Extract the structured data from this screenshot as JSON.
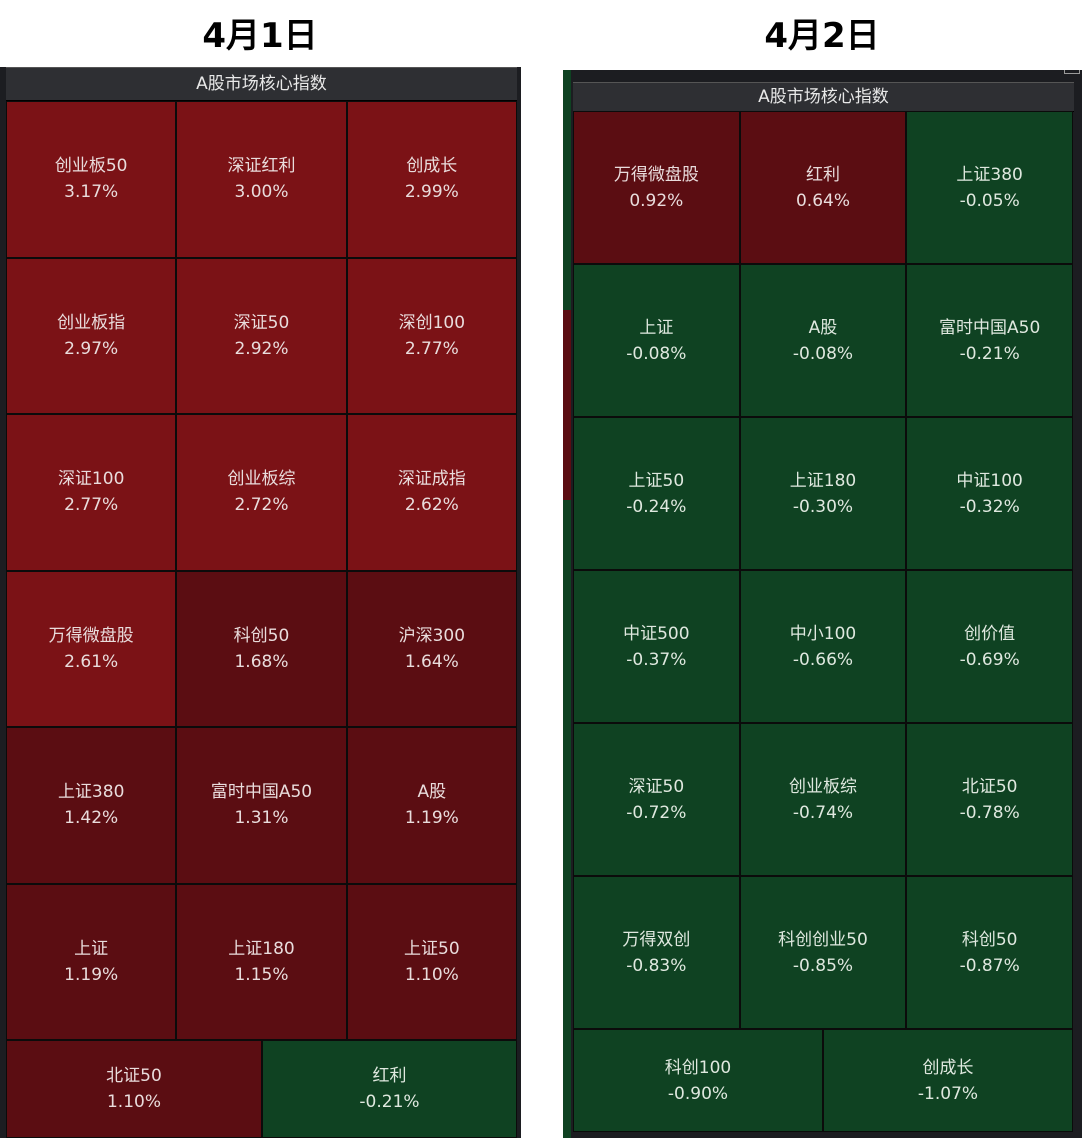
{
  "left": {
    "day_label": "4月1日",
    "panel_title": "A股市场核心指数",
    "tiles": [
      {
        "name": "创业板50",
        "pct": "3.17%",
        "tone": "red1"
      },
      {
        "name": "深证红利",
        "pct": "3.00%",
        "tone": "red1"
      },
      {
        "name": "创成长",
        "pct": "2.99%",
        "tone": "red1"
      },
      {
        "name": "创业板指",
        "pct": "2.97%",
        "tone": "red1"
      },
      {
        "name": "深证50",
        "pct": "2.92%",
        "tone": "red1"
      },
      {
        "name": "深创100",
        "pct": "2.77%",
        "tone": "red1"
      },
      {
        "name": "深证100",
        "pct": "2.77%",
        "tone": "red1"
      },
      {
        "name": "创业板综",
        "pct": "2.72%",
        "tone": "red1"
      },
      {
        "name": "深证成指",
        "pct": "2.62%",
        "tone": "red1"
      },
      {
        "name": "万得微盘股",
        "pct": "2.61%",
        "tone": "red1"
      },
      {
        "name": "科创50",
        "pct": "1.68%",
        "tone": "red2"
      },
      {
        "name": "沪深300",
        "pct": "1.64%",
        "tone": "red2"
      },
      {
        "name": "上证380",
        "pct": "1.42%",
        "tone": "red2"
      },
      {
        "name": "富时中国A50",
        "pct": "1.31%",
        "tone": "red2"
      },
      {
        "name": "A股",
        "pct": "1.19%",
        "tone": "red2"
      },
      {
        "name": "上证",
        "pct": "1.19%",
        "tone": "red2"
      },
      {
        "name": "上证180",
        "pct": "1.15%",
        "tone": "red2"
      },
      {
        "name": "上证50",
        "pct": "1.10%",
        "tone": "red2"
      },
      {
        "name": "北证50",
        "pct": "1.10%",
        "tone": "red2"
      },
      {
        "name": "红利",
        "pct": "-0.21%",
        "tone": "green"
      }
    ]
  },
  "right": {
    "day_label": "4月2日",
    "panel_title": "A股市场核心指数",
    "tiles": [
      {
        "name": "万得微盘股",
        "pct": "0.92%",
        "tone": "red2"
      },
      {
        "name": "红利",
        "pct": "0.64%",
        "tone": "red2"
      },
      {
        "name": "上证380",
        "pct": "-0.05%",
        "tone": "green"
      },
      {
        "name": "上证",
        "pct": "-0.08%",
        "tone": "green"
      },
      {
        "name": "A股",
        "pct": "-0.08%",
        "tone": "green"
      },
      {
        "name": "富时中国A50",
        "pct": "-0.21%",
        "tone": "green"
      },
      {
        "name": "上证50",
        "pct": "-0.24%",
        "tone": "green"
      },
      {
        "name": "上证180",
        "pct": "-0.30%",
        "tone": "green"
      },
      {
        "name": "中证100",
        "pct": "-0.32%",
        "tone": "green"
      },
      {
        "name": "中证500",
        "pct": "-0.37%",
        "tone": "green"
      },
      {
        "name": "中小100",
        "pct": "-0.66%",
        "tone": "green"
      },
      {
        "name": "创价值",
        "pct": "-0.69%",
        "tone": "green"
      },
      {
        "name": "深证50",
        "pct": "-0.72%",
        "tone": "green"
      },
      {
        "name": "创业板综",
        "pct": "-0.74%",
        "tone": "green"
      },
      {
        "name": "北证50",
        "pct": "-0.78%",
        "tone": "green"
      },
      {
        "name": "万得双创",
        "pct": "-0.83%",
        "tone": "green"
      },
      {
        "name": "科创创业50",
        "pct": "-0.85%",
        "tone": "green"
      },
      {
        "name": "科创50",
        "pct": "-0.87%",
        "tone": "green"
      },
      {
        "name": "科创100",
        "pct": "-0.90%",
        "tone": "green"
      },
      {
        "name": "创成长",
        "pct": "-1.07%",
        "tone": "green"
      }
    ]
  },
  "colors": {
    "up_strong": "#7b1216",
    "up_weak": "#5b0d12",
    "down": "#0f4222"
  }
}
